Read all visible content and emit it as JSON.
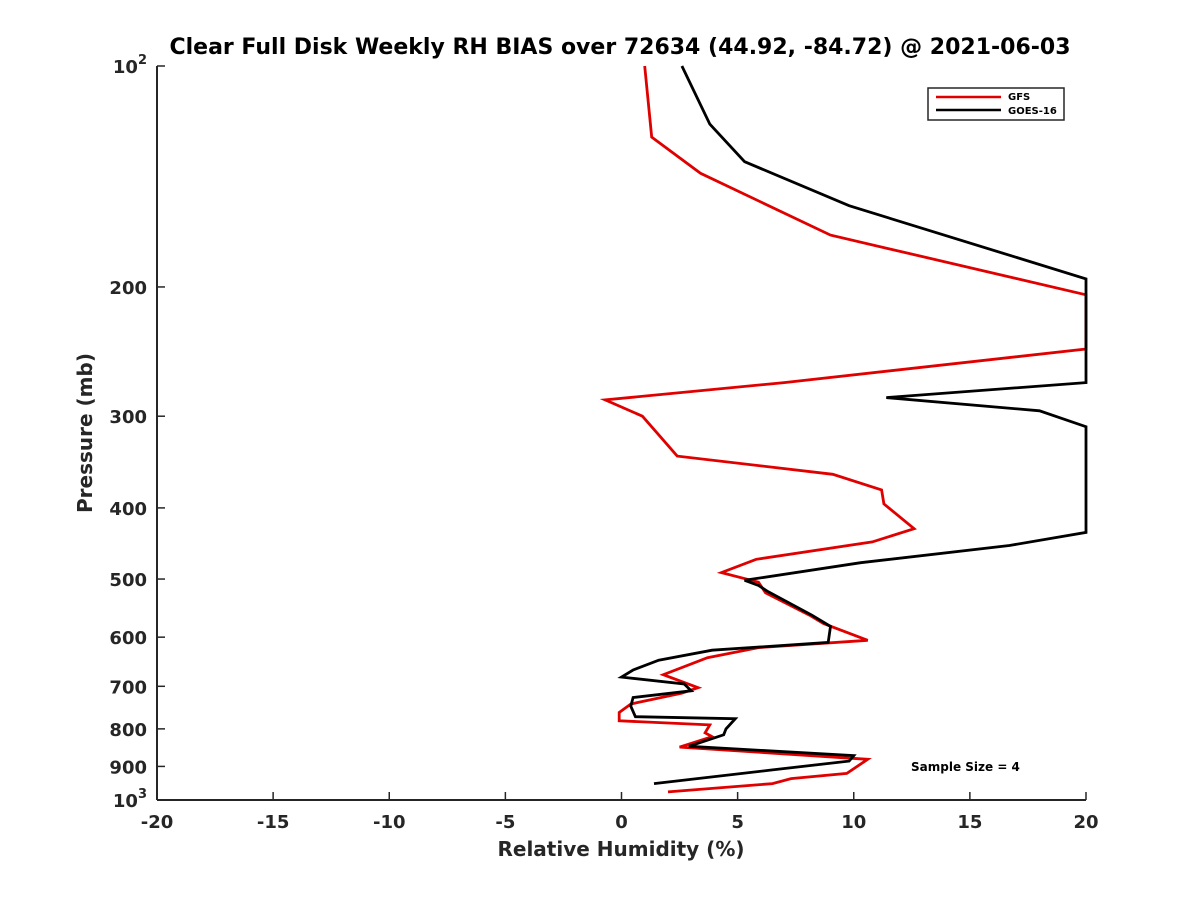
{
  "chart_data": {
    "type": "line",
    "title": "Clear Full Disk Weekly RH BIAS over 72634 (44.92, -84.72) @ 2021-06-03",
    "xlabel": "Relative Humidity (%)",
    "ylabel": "Pressure (mb)",
    "xlim": [
      -20,
      20
    ],
    "ylim": [
      100,
      1000
    ],
    "yscale": "log",
    "y_reversed": true,
    "grid": false,
    "legend_position": "top-right",
    "x_ticks": [
      "-20",
      "-15",
      "-10",
      "-5",
      "0",
      "5",
      "10",
      "15",
      "20"
    ],
    "y_ticks": [
      {
        "value": 100,
        "base": "10",
        "exp": "2"
      },
      {
        "value": 200,
        "label": "200"
      },
      {
        "value": 300,
        "label": "300"
      },
      {
        "value": 400,
        "label": "400"
      },
      {
        "value": 500,
        "label": "500"
      },
      {
        "value": 600,
        "label": "600"
      },
      {
        "value": 700,
        "label": "700"
      },
      {
        "value": 800,
        "label": "800"
      },
      {
        "value": 900,
        "label": "900"
      },
      {
        "value": 1000,
        "base": "10",
        "exp": "3"
      }
    ],
    "annotation": "Sample Size = 4",
    "series": [
      {
        "name": "GFS",
        "color": "#e00000",
        "points": [
          [
            1.0,
            100
          ],
          [
            1.3,
            125
          ],
          [
            3.4,
            140
          ],
          [
            9.0,
            170
          ],
          [
            20,
            205
          ],
          [
            20,
            243
          ],
          [
            7.0,
            270
          ],
          [
            -0.7,
            285
          ],
          [
            0.9,
            300
          ],
          [
            1.6,
            318
          ],
          [
            2.4,
            340
          ],
          [
            9.1,
            360
          ],
          [
            11.2,
            378
          ],
          [
            11.3,
            395
          ],
          [
            12.6,
            427
          ],
          [
            10.8,
            445
          ],
          [
            5.8,
            470
          ],
          [
            4.3,
            490
          ],
          [
            5.9,
            505
          ],
          [
            6.2,
            522
          ],
          [
            8.1,
            560
          ],
          [
            8.7,
            575
          ],
          [
            10.6,
            606
          ],
          [
            5.9,
            620
          ],
          [
            3.7,
            640
          ],
          [
            1.8,
            675
          ],
          [
            3.3,
            703
          ],
          [
            2.6,
            715
          ],
          [
            0.4,
            740
          ],
          [
            -0.1,
            760
          ],
          [
            -0.1,
            780
          ],
          [
            3.8,
            790
          ],
          [
            3.6,
            810
          ],
          [
            3.9,
            820
          ],
          [
            2.5,
            847
          ],
          [
            10.6,
            880
          ],
          [
            9.7,
            920
          ],
          [
            7.3,
            935
          ],
          [
            6.5,
            950
          ],
          [
            2.0,
            975
          ]
        ]
      },
      {
        "name": "GOES-16",
        "color": "#000000",
        "points": [
          [
            2.6,
            100
          ],
          [
            3.8,
            120
          ],
          [
            5.3,
            135
          ],
          [
            9.8,
            155
          ],
          [
            20,
            195
          ],
          [
            20,
            270
          ],
          [
            11.4,
            283
          ],
          [
            18.0,
            295
          ],
          [
            20,
            310
          ],
          [
            20,
            432
          ],
          [
            16.7,
            450
          ],
          [
            10.3,
            475
          ],
          [
            5.3,
            502
          ],
          [
            5.9,
            510
          ],
          [
            6.3,
            520
          ],
          [
            8.2,
            560
          ],
          [
            9.0,
            580
          ],
          [
            8.9,
            610
          ],
          [
            3.9,
            625
          ],
          [
            1.6,
            645
          ],
          [
            0.5,
            665
          ],
          [
            0.0,
            680
          ],
          [
            2.7,
            695
          ],
          [
            3.0,
            710
          ],
          [
            0.5,
            725
          ],
          [
            0.4,
            745
          ],
          [
            0.6,
            770
          ],
          [
            4.9,
            775
          ],
          [
            4.5,
            800
          ],
          [
            4.4,
            815
          ],
          [
            2.9,
            845
          ],
          [
            10.0,
            870
          ],
          [
            9.8,
            885
          ],
          [
            6.5,
            910
          ],
          [
            1.4,
            950
          ]
        ]
      }
    ]
  }
}
